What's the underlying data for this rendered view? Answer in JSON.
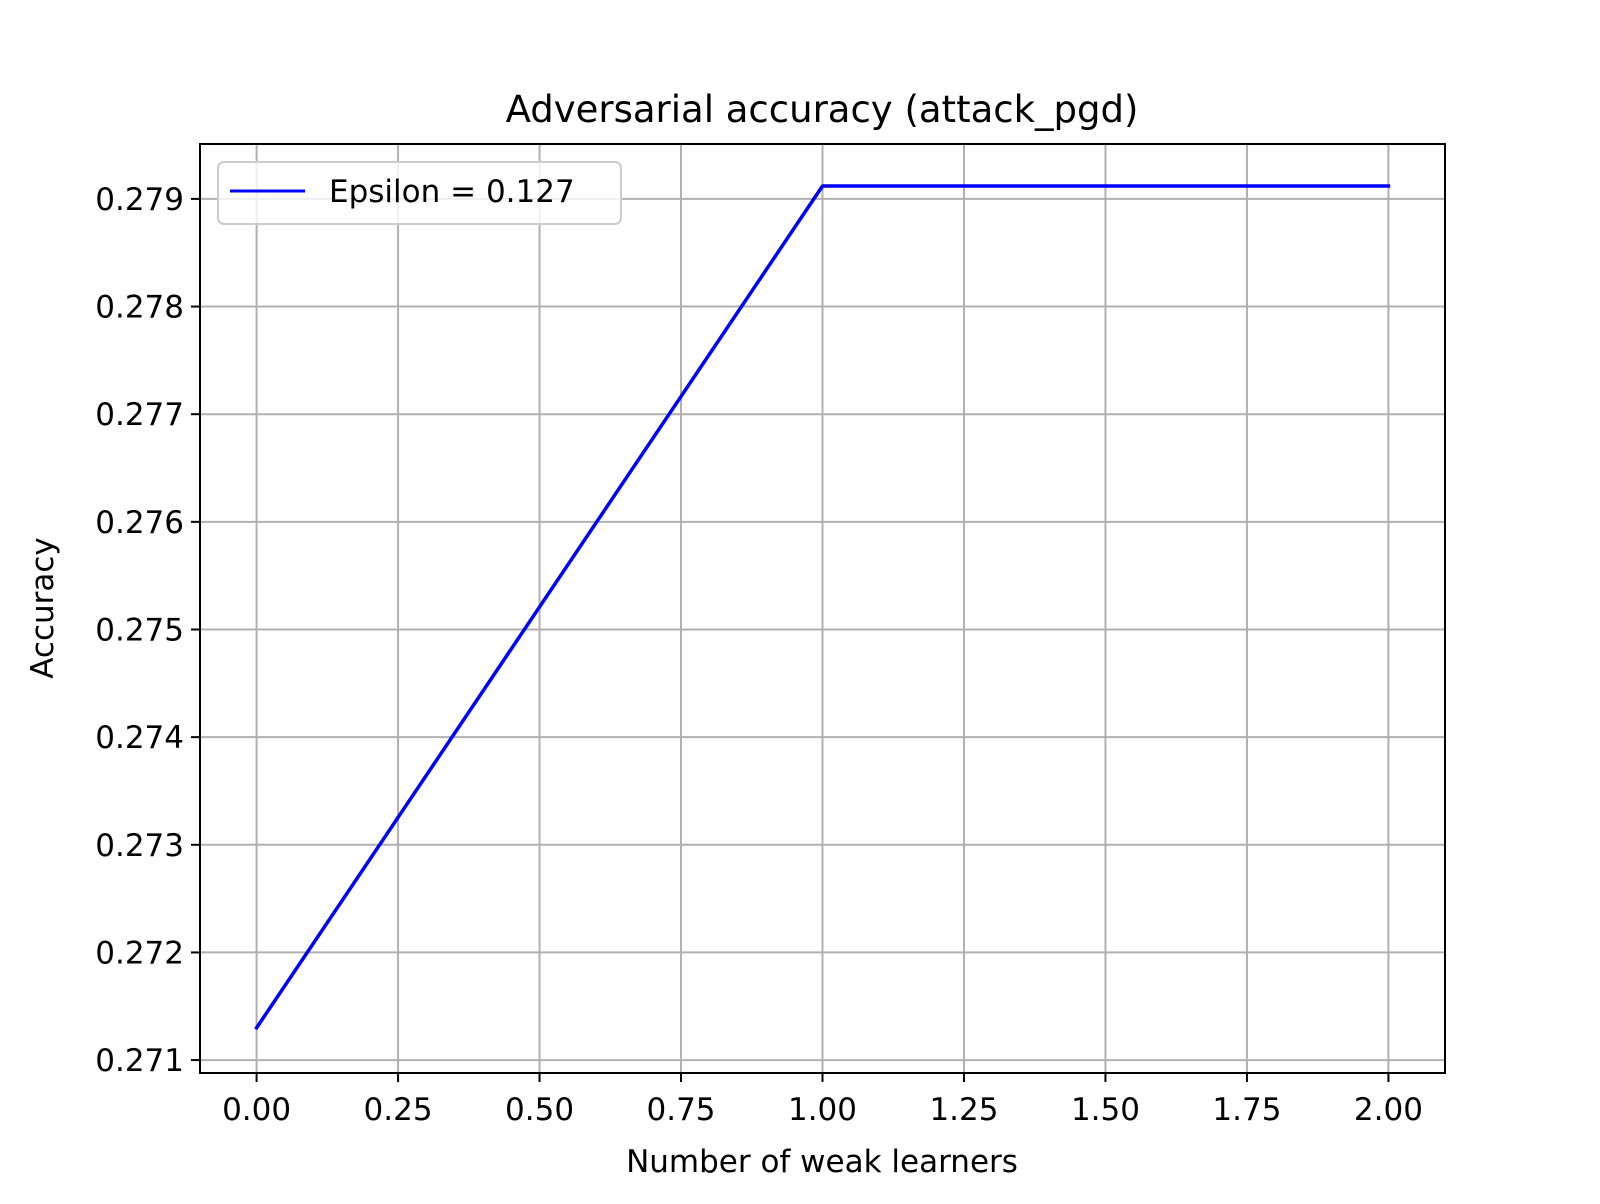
{
  "chart_data": {
    "type": "line",
    "title": "Adversarial accuracy (attack_pgd)",
    "xlabel": "Number of weak learners",
    "ylabel": "Accuracy",
    "xlim": [
      -0.1,
      2.1
    ],
    "ylim": [
      0.27088,
      0.27951
    ],
    "xticks": [
      0.0,
      0.25,
      0.5,
      0.75,
      1.0,
      1.25,
      1.5,
      1.75,
      2.0
    ],
    "xtick_labels": [
      "0.00",
      "0.25",
      "0.50",
      "0.75",
      "1.00",
      "1.25",
      "1.50",
      "1.75",
      "2.00"
    ],
    "yticks": [
      0.271,
      0.272,
      0.273,
      0.274,
      0.275,
      0.276,
      0.277,
      0.278,
      0.279
    ],
    "ytick_labels": [
      "0.271",
      "0.272",
      "0.273",
      "0.274",
      "0.275",
      "0.276",
      "0.277",
      "0.278",
      "0.279"
    ],
    "grid": true,
    "legend_position": "top-left",
    "series": [
      {
        "name": "Epsilon = 0.127",
        "color": "#0000ff",
        "x": [
          0,
          1,
          2
        ],
        "y": [
          0.2713,
          0.27912,
          0.27912
        ]
      }
    ]
  }
}
